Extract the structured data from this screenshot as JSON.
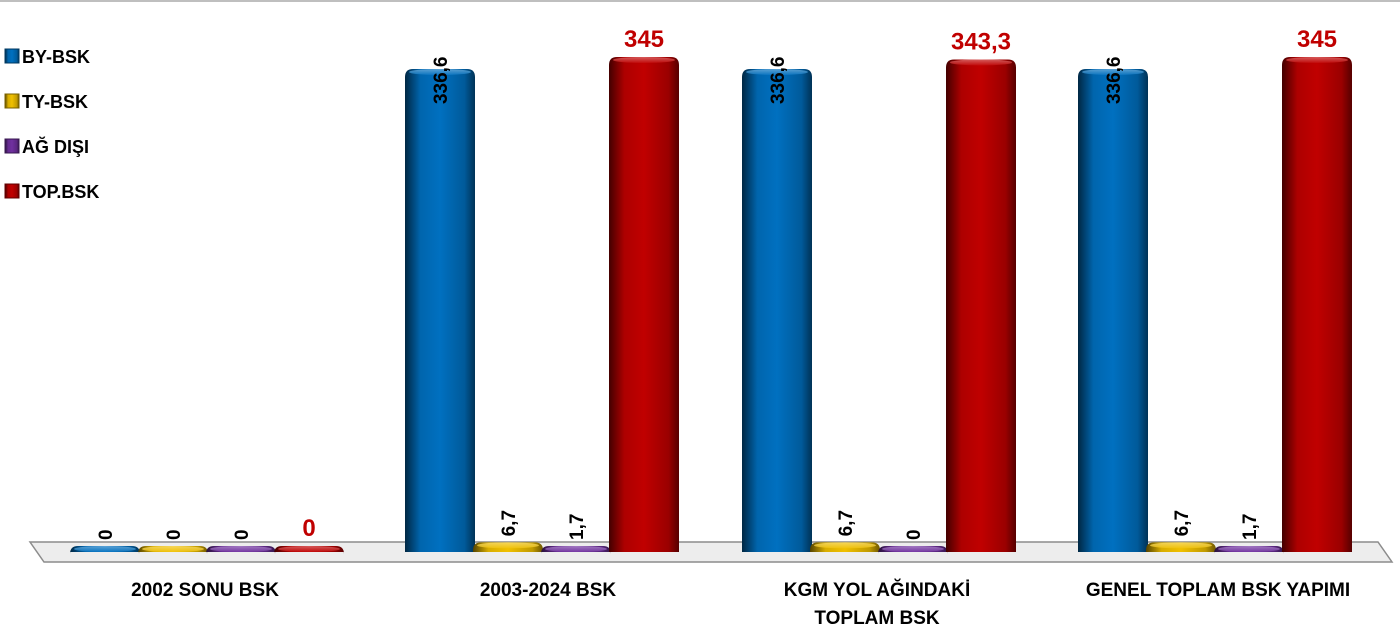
{
  "chart_data": {
    "type": "bar",
    "categories": [
      "2002 SONU BSK",
      "2003-2024 BSK",
      "KGM YOL AĞINDAKİ TOPLAM BSK",
      "GENEL TOPLAM BSK YAPIMI"
    ],
    "category_lines": [
      [
        "2002 SONU BSK"
      ],
      [
        "2003-2024 BSK"
      ],
      [
        "KGM YOL AĞINDAKİ",
        "TOPLAM BSK"
      ],
      [
        "GENEL TOPLAM BSK YAPIMI"
      ]
    ],
    "series": [
      {
        "name": "BY-BSK",
        "values": [
          0,
          336.6,
          336.6,
          336.6
        ],
        "labels": [
          "0",
          "336,6",
          "336,6",
          "336,6"
        ],
        "color": "#0070c0"
      },
      {
        "name": "TY-BSK",
        "values": [
          0,
          6.7,
          6.7,
          6.7
        ],
        "labels": [
          "0",
          "6,7",
          "6,7",
          "6,7"
        ],
        "color": "#f0c000"
      },
      {
        "name": "AĞ DIŞI",
        "values": [
          0,
          1.7,
          0,
          1.7
        ],
        "labels": [
          "0",
          "1,7",
          "0",
          "1,7"
        ],
        "color": "#7030a0"
      },
      {
        "name": "TOP.BSK",
        "values": [
          0,
          345,
          343.3,
          345
        ],
        "labels": [
          "0",
          "345",
          "343,3",
          "345"
        ],
        "color": "#c00000"
      }
    ],
    "ylim": [
      0,
      345
    ],
    "legend_position": "left",
    "grid": false,
    "title": "",
    "xlabel": "",
    "ylabel": ""
  }
}
